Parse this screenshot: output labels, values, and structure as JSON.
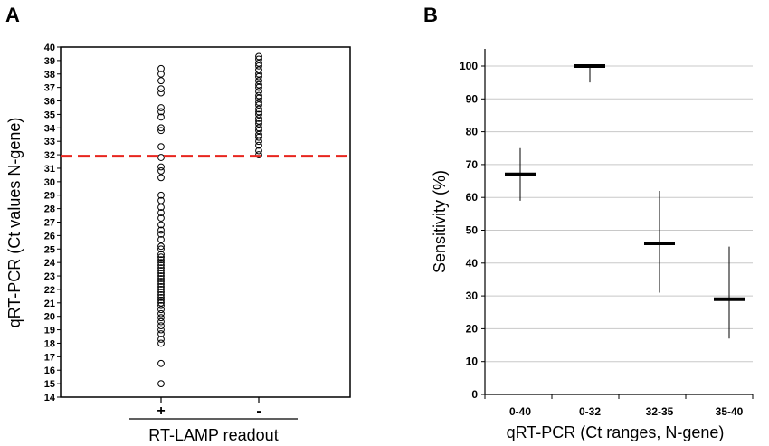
{
  "chart_data": [
    {
      "panel": "A",
      "type": "scatter",
      "xlabel": "RT-LAMP readout",
      "ylabel": "qRT-PCR (Ct values N-gene)",
      "categories": [
        "+",
        "-"
      ],
      "ylim": [
        14,
        40
      ],
      "yticks": [
        14,
        15,
        16,
        17,
        18,
        19,
        20,
        21,
        22,
        23,
        24,
        25,
        26,
        27,
        28,
        29,
        30,
        31,
        32,
        33,
        34,
        35,
        36,
        37,
        38,
        39,
        40
      ],
      "threshold": 31.9,
      "threshold_color": "#e8251e",
      "series": [
        {
          "category": "+",
          "values": [
            38.4,
            38.0,
            37.5,
            36.9,
            36.6,
            35.5,
            35.2,
            34.8,
            34.0,
            33.8,
            32.6,
            31.8,
            31.1,
            30.8,
            30.3,
            29.0,
            28.6,
            28.1,
            27.7,
            27.3,
            26.8,
            26.4,
            26.1,
            25.7,
            25.2,
            25.0,
            24.6,
            24.4,
            24.2,
            24.0,
            23.8,
            23.6,
            23.4,
            23.2,
            23.0,
            22.8,
            22.6,
            22.4,
            22.2,
            22.0,
            21.8,
            21.6,
            21.4,
            21.2,
            21.0,
            20.8,
            20.5,
            20.2,
            19.9,
            19.6,
            19.3,
            19.0,
            18.7,
            18.3,
            18.0,
            16.5,
            15.0
          ]
        },
        {
          "category": "-",
          "values": [
            39.3,
            39.1,
            38.8,
            38.6,
            38.3,
            38.0,
            37.8,
            37.5,
            37.2,
            37.0,
            36.7,
            36.4,
            36.2,
            35.9,
            35.7,
            35.4,
            35.2,
            35.0,
            34.7,
            34.5,
            34.3,
            34.0,
            33.8,
            33.5,
            33.3,
            33.0,
            32.7,
            32.3,
            32.0
          ]
        }
      ]
    },
    {
      "panel": "B",
      "type": "scatter",
      "xlabel": "qRT-PCR (Ct ranges, N-gene)",
      "ylabel": "Sensitivity (%)",
      "categories": [
        "0-40",
        "0-32",
        "32-35",
        "35-40"
      ],
      "values": [
        67,
        100,
        46,
        29
      ],
      "ci_low": [
        59,
        95,
        31,
        17
      ],
      "ci_high": [
        75,
        100,
        62,
        45
      ],
      "ylim": [
        0,
        100
      ],
      "yticks": [
        0,
        10,
        20,
        30,
        40,
        50,
        60,
        70,
        80,
        90,
        100
      ],
      "grid": true
    }
  ]
}
